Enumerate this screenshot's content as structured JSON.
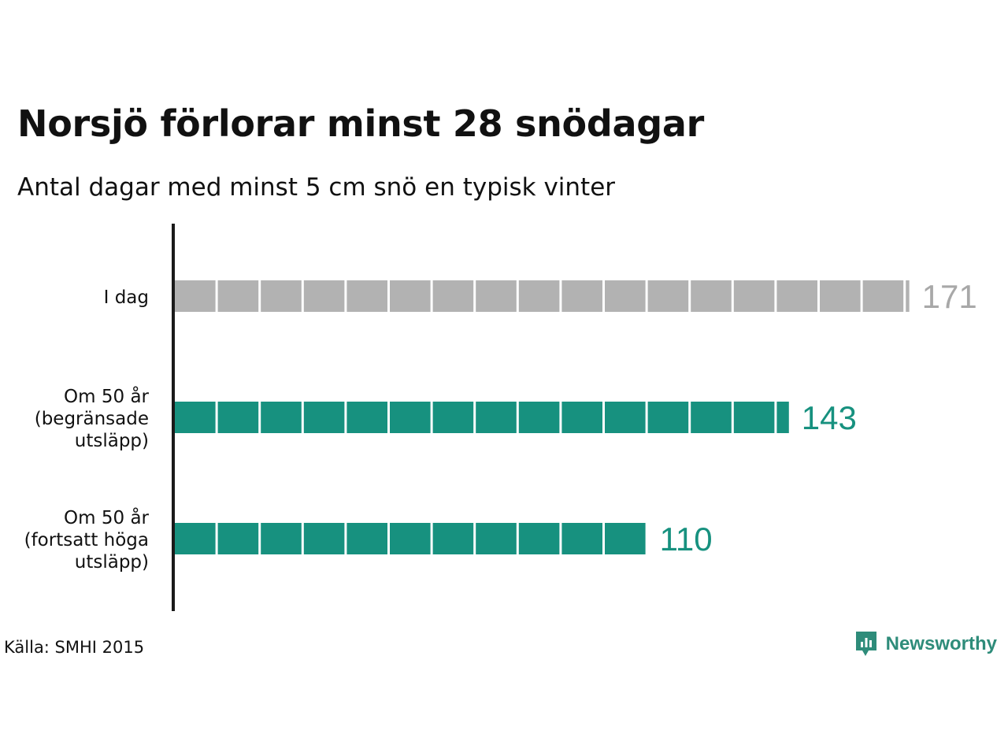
{
  "title": "Norsjö förlorar minst 28 snödagar",
  "subtitle": "Antal dagar med minst 5 cm snö en typisk vinter",
  "source": "Källa: SMHI 2015",
  "brand": {
    "name": "Newsworthy",
    "icon": "newsworthy-logo-icon",
    "color": "#2e8c7a"
  },
  "chart_data": {
    "type": "bar",
    "orientation": "horizontal",
    "categories": [
      "I dag",
      "Om 50 år\n(begränsade\nutsläpp)",
      "Om 50 år\n(fortsatt höga\nutsläpp)"
    ],
    "values": [
      171,
      143,
      110
    ],
    "colors": [
      "#b2b2b2",
      "#17917f",
      "#17917f"
    ],
    "segment_size": 10,
    "xlim": [
      0,
      171
    ],
    "grid": false,
    "legend": "none"
  }
}
